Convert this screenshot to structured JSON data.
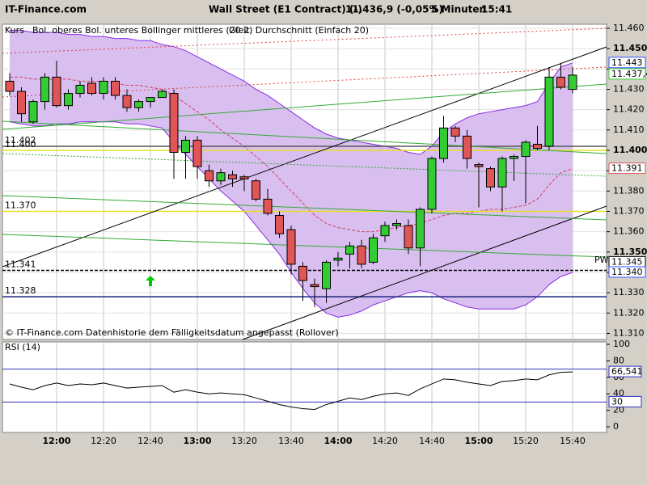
{
  "header": {
    "site": "IT-Finance.com",
    "instrument": "Wall Street (E1 Contract) (-)",
    "quote": "11.436,9 (-0,05%)",
    "interval": "5 Minuten",
    "time": "15:41"
  },
  "chart_data": [
    {
      "type": "candlestick",
      "legend": [
        {
          "label": "Kurs",
          "color": "#000000"
        },
        {
          "label": "Bol. oberes Bol. unteres Bollinger mittleres (20 2)",
          "color": "#8a2be2"
        },
        {
          "label": "Gleit. Durchschnitt (Einfach 20)",
          "color": "#e07070"
        }
      ],
      "categories": [
        null,
        null,
        null,
        null,
        "12:00",
        null,
        null,
        null,
        "12:20",
        null,
        null,
        null,
        "12:40",
        null,
        null,
        null,
        "13:00",
        null,
        null,
        null,
        "13:20",
        null,
        null,
        null,
        "13:40",
        null,
        null,
        null,
        "14:00",
        null,
        null,
        null,
        "14:20",
        null,
        null,
        null,
        "14:40",
        null,
        null,
        null,
        "15:00",
        null,
        null,
        null,
        "15:20",
        null,
        null,
        null,
        "15:40"
      ],
      "open": [
        11.434,
        11.429,
        11.414,
        11.424,
        11.436,
        11.422,
        11.428,
        11.433,
        11.428,
        11.434,
        11.427,
        11.421,
        11.424,
        11.426,
        11.428,
        11.399,
        11.405,
        11.39,
        11.385,
        11.388,
        11.387,
        11.385,
        11.376,
        11.368,
        11.361,
        11.343,
        11.334,
        11.332,
        11.346,
        11.349,
        11.353,
        11.345,
        11.358,
        11.363,
        11.363,
        11.352,
        11.371,
        11.396,
        11.411,
        11.407,
        11.393,
        11.391,
        11.382,
        11.396,
        11.397,
        11.403,
        11.402,
        11.436,
        11.43
      ],
      "high": [
        11.438,
        11.431,
        11.425,
        11.438,
        11.444,
        11.43,
        11.434,
        11.436,
        11.436,
        11.436,
        11.43,
        11.425,
        11.426,
        11.43,
        11.43,
        11.407,
        11.407,
        11.393,
        11.391,
        11.39,
        11.388,
        11.386,
        11.381,
        11.37,
        11.363,
        11.345,
        11.337,
        11.346,
        11.35,
        11.355,
        11.356,
        11.359,
        11.365,
        11.366,
        11.366,
        11.372,
        11.397,
        11.417,
        11.412,
        11.41,
        11.394,
        11.392,
        11.397,
        11.398,
        11.405,
        11.412,
        11.441,
        11.443,
        11.441
      ],
      "low": [
        11.427,
        11.414,
        11.413,
        11.42,
        11.421,
        11.42,
        11.426,
        11.427,
        11.425,
        11.425,
        11.419,
        11.419,
        11.421,
        11.426,
        11.386,
        11.386,
        11.386,
        11.382,
        11.383,
        11.382,
        11.38,
        11.375,
        11.368,
        11.357,
        11.339,
        11.326,
        11.323,
        11.325,
        11.343,
        11.342,
        11.342,
        11.344,
        11.355,
        11.361,
        11.349,
        11.343,
        11.369,
        11.394,
        11.404,
        11.391,
        11.372,
        11.38,
        11.37,
        11.385,
        11.374,
        11.4,
        11.4,
        11.43,
        11.428
      ],
      "close": [
        11.429,
        11.418,
        11.424,
        11.436,
        11.422,
        11.428,
        11.432,
        11.428,
        11.434,
        11.427,
        11.421,
        11.424,
        11.426,
        11.429,
        11.399,
        11.405,
        11.392,
        11.385,
        11.389,
        11.386,
        11.386,
        11.376,
        11.369,
        11.359,
        11.344,
        11.336,
        11.333,
        11.345,
        11.347,
        11.353,
        11.344,
        11.357,
        11.363,
        11.364,
        11.352,
        11.371,
        11.396,
        11.411,
        11.407,
        11.396,
        11.392,
        11.382,
        11.396,
        11.397,
        11.404,
        11.401,
        11.436,
        11.431,
        11.437
      ],
      "up_color": "#33cc33",
      "down_color": "#e05555",
      "upper": [
        11.459,
        11.459,
        11.458,
        11.458,
        11.458,
        11.457,
        11.457,
        11.456,
        11.456,
        11.455,
        11.455,
        11.454,
        11.454,
        11.452,
        11.451,
        11.449,
        11.446,
        11.443,
        11.44,
        11.437,
        11.434,
        11.43,
        11.427,
        11.423,
        11.419,
        11.415,
        11.411,
        11.408,
        11.406,
        11.405,
        11.404,
        11.403,
        11.402,
        11.401,
        11.399,
        11.398,
        11.402,
        11.409,
        11.413,
        11.416,
        11.418,
        11.419,
        11.42,
        11.421,
        11.422,
        11.424,
        11.433,
        11.441,
        11.443
      ],
      "lower": [
        11.414,
        11.413,
        11.412,
        11.412,
        11.413,
        11.413,
        11.414,
        11.414,
        11.414,
        11.414,
        11.413,
        11.413,
        11.412,
        11.411,
        11.404,
        11.398,
        11.392,
        11.386,
        11.38,
        11.375,
        11.37,
        11.363,
        11.356,
        11.349,
        11.34,
        11.332,
        11.325,
        11.32,
        11.318,
        11.319,
        11.321,
        11.324,
        11.326,
        11.328,
        11.33,
        11.331,
        11.33,
        11.327,
        11.325,
        11.323,
        11.322,
        11.322,
        11.322,
        11.322,
        11.324,
        11.328,
        11.334,
        11.338,
        11.34
      ],
      "middle": [
        11.436,
        11.436,
        11.435,
        11.435,
        11.435,
        11.435,
        11.434,
        11.434,
        11.434,
        11.433,
        11.432,
        11.432,
        11.431,
        11.43,
        11.427,
        11.423,
        11.419,
        11.415,
        11.41,
        11.406,
        11.402,
        11.397,
        11.392,
        11.386,
        11.38,
        11.374,
        11.368,
        11.364,
        11.362,
        11.361,
        11.36,
        11.36,
        11.361,
        11.362,
        11.363,
        11.364,
        11.366,
        11.368,
        11.369,
        11.369,
        11.37,
        11.371,
        11.371,
        11.372,
        11.373,
        11.376,
        11.383,
        11.389,
        11.391
      ],
      "band_color": "#8a2be2",
      "band_fill": "#d9bff0",
      "middle_color": "#cc4466",
      "levels": [
        {
          "value": 11.402,
          "label": "11.402",
          "color": "#555555"
        },
        {
          "value": 11.4,
          "label": "11.400",
          "color": "#e8e020"
        },
        {
          "value": 11.37,
          "label": "11.370",
          "color": "#e8e020"
        },
        {
          "value": 11.341,
          "label": "11.341",
          "color": "#000000"
        },
        {
          "value": 11.328,
          "label": "11.328",
          "color": "#1a237e"
        }
      ],
      "price_boxes": [
        {
          "value": 11.443,
          "label": "11.443",
          "color": "#3355ff"
        },
        {
          "value": 11.4374,
          "label": "11.437,4",
          "color": "#33cc33"
        },
        {
          "value": 11.391,
          "label": "11.391",
          "color": "#e05555"
        },
        {
          "value": 11.345,
          "label": "11.345",
          "color": "#000000"
        },
        {
          "value": 11.34,
          "label": "11.340",
          "color": "#3355ff"
        }
      ],
      "ylim": [
        11.307,
        11.462
      ],
      "yticks": [
        {
          "value": 11.31,
          "label": "11.310"
        },
        {
          "value": 11.32,
          "label": "11.320"
        },
        {
          "value": 11.33,
          "label": "11.330"
        },
        {
          "value": 11.34,
          "label": "11.340"
        },
        {
          "value": 11.35,
          "label": "11.350"
        },
        {
          "value": 11.36,
          "label": "11.360"
        },
        {
          "value": 11.37,
          "label": "11.370"
        },
        {
          "value": 11.38,
          "label": "11.380"
        },
        {
          "value": 11.39,
          "label": "11.390"
        },
        {
          "value": 11.4,
          "label": "11.400"
        },
        {
          "value": 11.41,
          "label": "11.410"
        },
        {
          "value": 11.42,
          "label": "11.420"
        },
        {
          "value": 11.43,
          "label": "11.430"
        },
        {
          "value": 11.44,
          "label": "11.440"
        },
        {
          "value": 11.45,
          "label": "11.450"
        },
        {
          "value": 11.46,
          "label": "11.460"
        }
      ],
      "grid": true,
      "footer": "© IT-Finance.com  Datenhistorie dem Fälligkeitsdatum angepasst (Rollover)",
      "marker": "PW"
    },
    {
      "type": "line",
      "title": "RSI (14)",
      "color": "#000000",
      "values": [
        52,
        48,
        45,
        50,
        53,
        50,
        52,
        51,
        53,
        50,
        47,
        48,
        49,
        50,
        42,
        45,
        42,
        40,
        41,
        40,
        39,
        35,
        31,
        27,
        24,
        22,
        21,
        27,
        31,
        35,
        33,
        37,
        40,
        41,
        38,
        46,
        52,
        58,
        57,
        54,
        52,
        50,
        55,
        56,
        58,
        57,
        63,
        66,
        66.5
      ],
      "ylim": [
        0,
        100
      ],
      "yticks": [
        0,
        20,
        40,
        60,
        80,
        100
      ],
      "levels": [
        {
          "value": 70,
          "color": "#3030c0"
        },
        {
          "value": 30,
          "color": "#3030c0"
        }
      ],
      "boxes": [
        {
          "value": 66.541,
          "label": "66,541"
        },
        {
          "value": 30,
          "label": "30"
        }
      ]
    }
  ]
}
